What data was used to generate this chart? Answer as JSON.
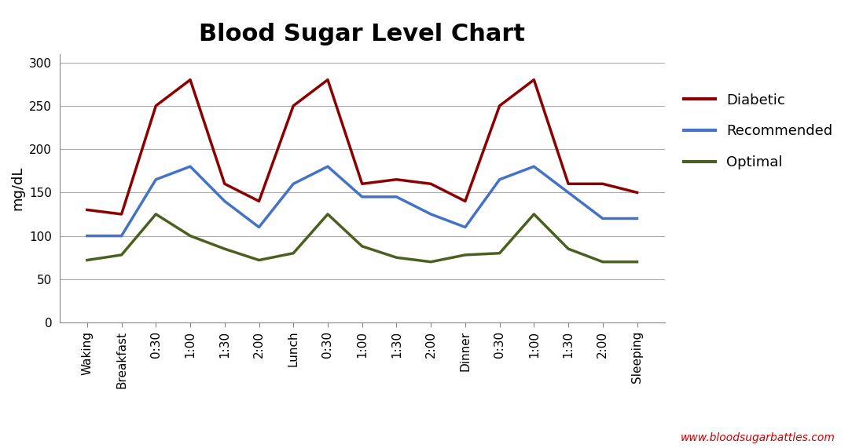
{
  "title": "Blood Sugar Level Chart",
  "ylabel": "mg/dL",
  "watermark": "www.bloodsugarbattles.com",
  "xlabels": [
    "Waking",
    "Breakfast",
    "0:30",
    "1:00",
    "1:30",
    "2:00",
    "Lunch",
    "0:30",
    "1:00",
    "1:30",
    "2:00",
    "Dinner",
    "0:30",
    "1:00",
    "1:30",
    "2:00",
    "Sleeping"
  ],
  "diabetic": [
    130,
    125,
    250,
    280,
    160,
    140,
    250,
    280,
    160,
    165,
    160,
    140,
    250,
    280,
    160,
    160,
    150
  ],
  "recommended": [
    100,
    100,
    165,
    180,
    140,
    110,
    160,
    180,
    145,
    145,
    125,
    110,
    165,
    180,
    150,
    120,
    120
  ],
  "optimal": [
    72,
    78,
    125,
    100,
    85,
    72,
    80,
    125,
    88,
    75,
    70,
    78,
    80,
    125,
    85,
    70,
    70
  ],
  "diabetic_color": "#8B0000",
  "recommended_color": "#4472C4",
  "optimal_color": "#4B6020",
  "background_color": "#FFFFFF",
  "ylim": [
    0,
    310
  ],
  "yticks": [
    0,
    50,
    100,
    150,
    200,
    250,
    300
  ],
  "title_fontsize": 22,
  "legend_fontsize": 13,
  "axis_label_fontsize": 13,
  "tick_fontsize": 11,
  "line_width": 2.5,
  "watermark_color": "#CC0000",
  "grid_color": "#AAAAAA"
}
